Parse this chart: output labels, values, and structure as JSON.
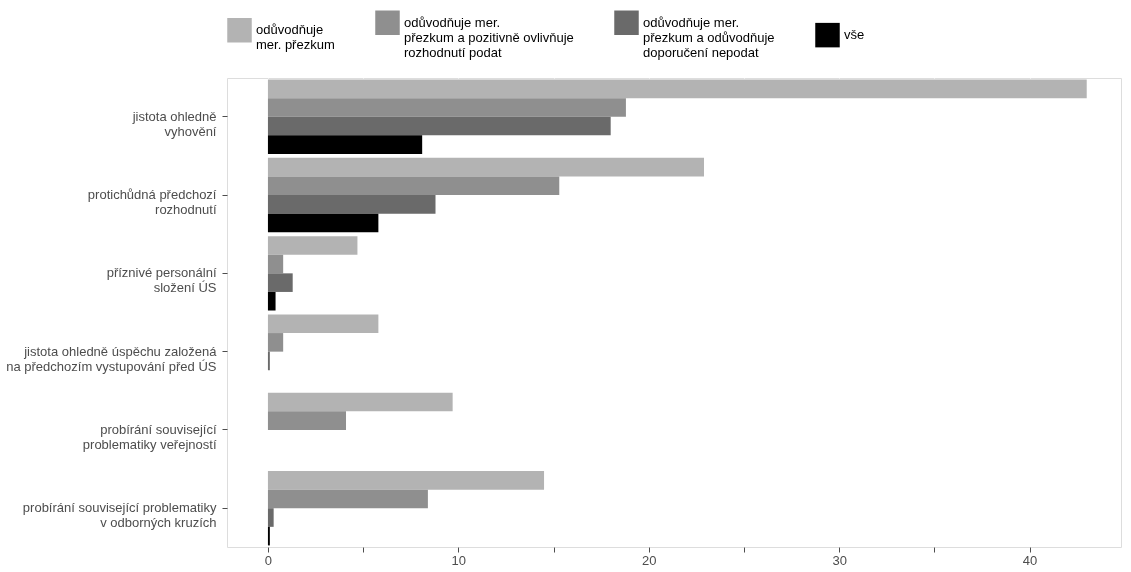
{
  "chart_data": {
    "type": "bar",
    "orientation": "horizontal",
    "categories": [
      "jistota ohledně\nvyhovění",
      "protichůdná předchozí\nrozhodnutí",
      "příznivé personální\nsložení ÚS",
      "jistota ohledně úspěchu založená\nna předchozím vystupování před ÚS",
      "probírání související\nproblematiky veřejností",
      "probírání související problematiky\nv odborných kruzích"
    ],
    "series": [
      {
        "name": "odůvodňuje\n mer. přezkum",
        "color": "#b3b3b3",
        "values": [
          43.0,
          22.9,
          4.7,
          5.8,
          9.7,
          14.5
        ]
      },
      {
        "name": "odůvodňuje mer.\n přezkum a pozitivně ovlivňuje\nrozhodnutí podat",
        "color": "#8f8f8f",
        "values": [
          18.8,
          15.3,
          0.8,
          0.8,
          4.1,
          8.4
        ]
      },
      {
        "name": "odůvodňuje mer.\n přezkum a odůvodňuje\ndoporučení nepodat",
        "color": "#6a6a6a",
        "values": [
          18.0,
          8.8,
          1.3,
          0.1,
          null,
          0.3
        ]
      },
      {
        "name": "vše",
        "color": "#000000",
        "values": [
          8.1,
          5.8,
          0.4,
          null,
          null,
          0.1
        ]
      }
    ],
    "xlim": [
      -2.15,
      44.8
    ],
    "xticks": [
      0,
      {
        "value": 5,
        "label": null
      },
      10,
      {
        "value": 15,
        "label": null
      },
      20,
      {
        "value": 25,
        "label": null
      },
      30,
      {
        "value": 35,
        "label": null
      },
      40
    ],
    "grid": true,
    "legend": "top"
  }
}
